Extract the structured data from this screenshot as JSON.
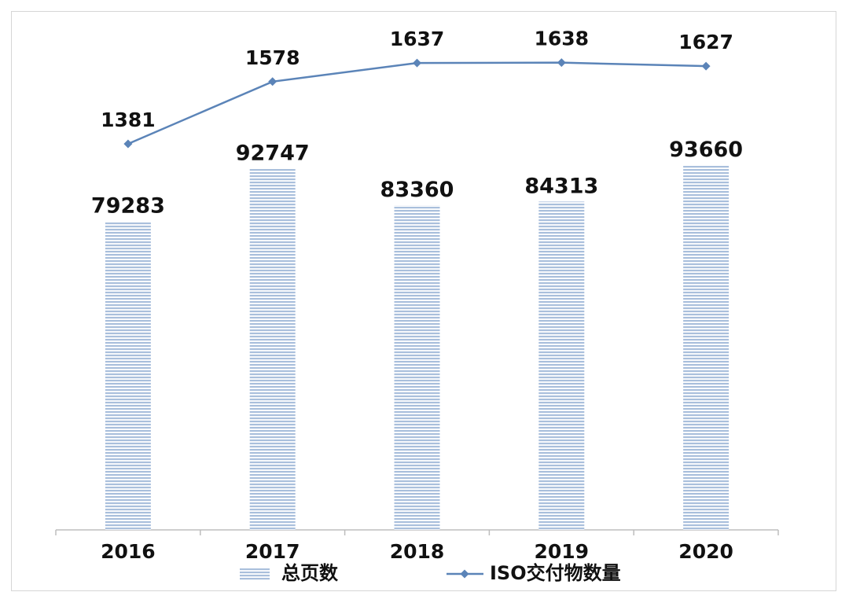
{
  "chart_data": {
    "type": "bar",
    "categories": [
      "2016",
      "2017",
      "2018",
      "2019",
      "2020"
    ],
    "series": [
      {
        "name": "总页数",
        "type": "bar",
        "values": [
          79283,
          92747,
          83360,
          84313,
          93660
        ]
      },
      {
        "name": "ISO交付物数量",
        "type": "line",
        "values": [
          1381,
          1578,
          1637,
          1638,
          1627
        ]
      }
    ],
    "legend_position": "bottom",
    "grid": false,
    "colors": {
      "bar": "#a9bfdc",
      "bar_stripe": "#ffffff",
      "line": "#5b84b8",
      "axis": "#bdbdbd"
    }
  }
}
